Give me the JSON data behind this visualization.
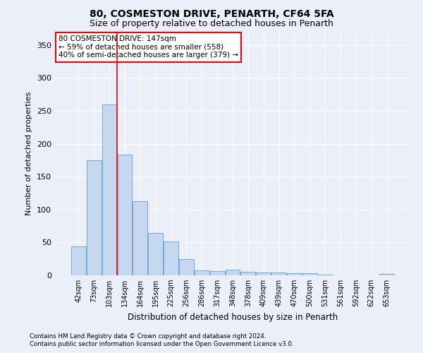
{
  "title1": "80, COSMESTON DRIVE, PENARTH, CF64 5FA",
  "title2": "Size of property relative to detached houses in Penarth",
  "xlabel": "Distribution of detached houses by size in Penarth",
  "ylabel": "Number of detached properties",
  "categories": [
    "42sqm",
    "73sqm",
    "103sqm",
    "134sqm",
    "164sqm",
    "195sqm",
    "225sqm",
    "256sqm",
    "286sqm",
    "317sqm",
    "348sqm",
    "378sqm",
    "409sqm",
    "439sqm",
    "470sqm",
    "500sqm",
    "531sqm",
    "561sqm",
    "592sqm",
    "622sqm",
    "653sqm"
  ],
  "values": [
    44,
    175,
    260,
    183,
    113,
    64,
    51,
    25,
    8,
    6,
    9,
    5,
    4,
    4,
    3,
    3,
    1,
    0,
    0,
    0,
    2
  ],
  "bar_color": "#c5d8f0",
  "bar_edge_color": "#6fa8d6",
  "background_color": "#eaeff9",
  "grid_color": "#ffffff",
  "red_line_index": 3,
  "annotation_line1": "80 COSMESTON DRIVE: 147sqm",
  "annotation_line2": "← 59% of detached houses are smaller (558)",
  "annotation_line3": "40% of semi-detached houses are larger (379) →",
  "annotation_box_color": "white",
  "annotation_box_edge": "red",
  "footer1": "Contains HM Land Registry data © Crown copyright and database right 2024.",
  "footer2": "Contains public sector information licensed under the Open Government Licence v3.0.",
  "ylim": [
    0,
    370
  ],
  "yticks": [
    0,
    50,
    100,
    150,
    200,
    250,
    300,
    350
  ]
}
